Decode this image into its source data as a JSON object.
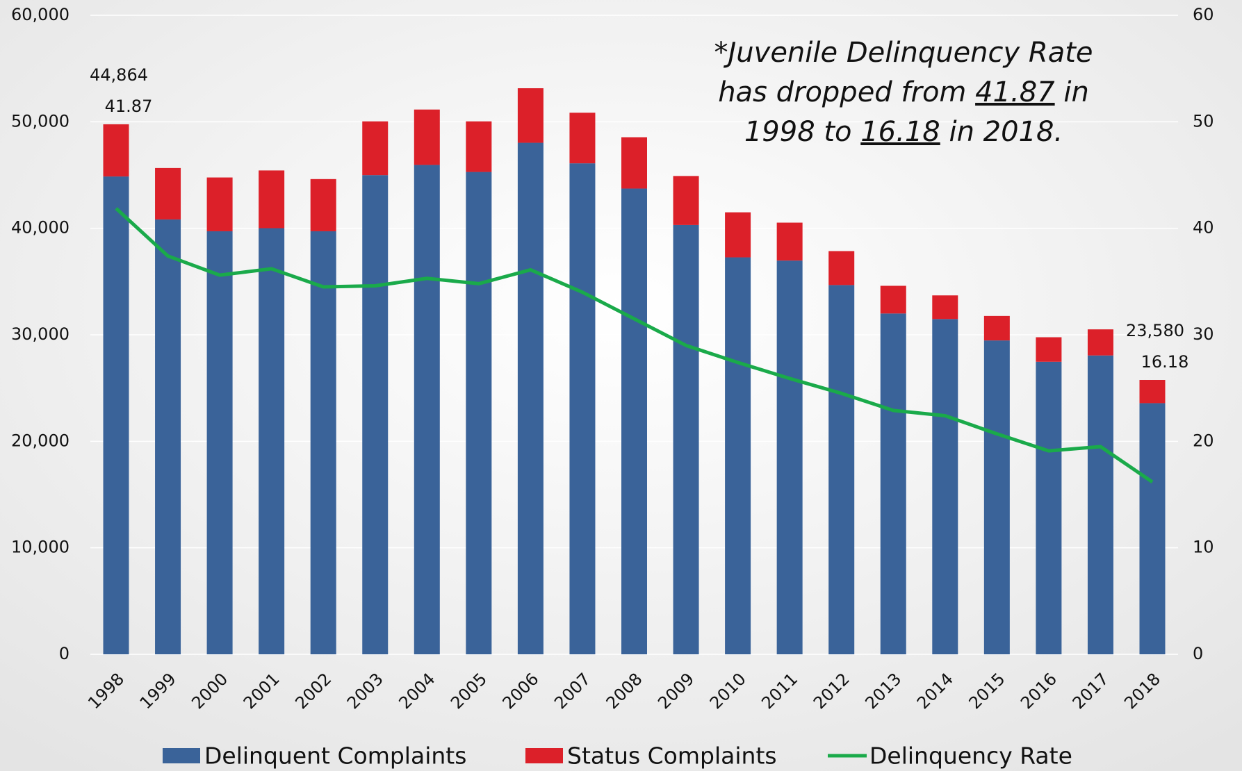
{
  "chart_data": {
    "type": "bar",
    "stacked": true,
    "categories": [
      "1998",
      "1999",
      "2000",
      "2001",
      "2002",
      "2003",
      "2004",
      "2005",
      "2006",
      "2007",
      "2008",
      "2009",
      "2010",
      "2011",
      "2012",
      "2013",
      "2014",
      "2015",
      "2016",
      "2017",
      "2018"
    ],
    "series": [
      {
        "name": "Delinquent Complaints",
        "type": "bar",
        "color": "#3a6399",
        "values": [
          44864,
          40830,
          39720,
          40010,
          39720,
          44990,
          45950,
          45290,
          48030,
          46100,
          43730,
          40310,
          37270,
          36970,
          34670,
          32000,
          31480,
          29470,
          27470,
          28060,
          23580
        ],
        "value_labels": [
          "44,864",
          null,
          null,
          null,
          null,
          null,
          null,
          null,
          null,
          null,
          null,
          null,
          null,
          null,
          null,
          null,
          null,
          null,
          null,
          null,
          "23,580"
        ]
      },
      {
        "name": "Status Complaints",
        "type": "bar",
        "color": "#dc2029",
        "values": [
          4900,
          4830,
          5050,
          5420,
          4900,
          5050,
          5200,
          4750,
          5120,
          4750,
          4820,
          4600,
          4230,
          3560,
          3190,
          2600,
          2220,
          2300,
          2300,
          2450,
          2180
        ]
      },
      {
        "name": "Delinquency Rate",
        "type": "line",
        "axis": "y2",
        "color": "#1aaa4a",
        "values": [
          41.87,
          37.4,
          35.6,
          36.2,
          34.5,
          34.6,
          35.3,
          34.8,
          36.1,
          34.0,
          31.5,
          29.0,
          27.4,
          25.9,
          24.5,
          22.9,
          22.4,
          20.7,
          19.1,
          19.5,
          16.18
        ]
      }
    ],
    "ylim": [
      0,
      60000
    ],
    "yticks": [
      0,
      {
        "value": 10000,
        "label": "10,000"
      },
      {
        "value": 20000,
        "label": "20,000"
      },
      {
        "value": 30000,
        "label": "30,000"
      },
      {
        "value": 40000,
        "label": "40,000"
      },
      {
        "value": 50000,
        "label": "50,000"
      },
      {
        "value": 60000,
        "label": "60,000"
      }
    ],
    "y2lim": [
      0,
      60
    ],
    "y2ticks": [
      0,
      10,
      20,
      30,
      40,
      50,
      60
    ],
    "grid": true,
    "legend": "bottom",
    "annotation": [
      [
        {
          "text": "*Juvenile Delinquency Rate"
        }
      ],
      [
        {
          "text": "has dropped from "
        },
        {
          "text": "41.87",
          "underline": true
        },
        {
          "text": " in"
        }
      ],
      [
        {
          "text": "1998 to "
        },
        {
          "text": "16.18",
          "underline": true
        },
        {
          "text": " in 2018."
        }
      ]
    ]
  }
}
